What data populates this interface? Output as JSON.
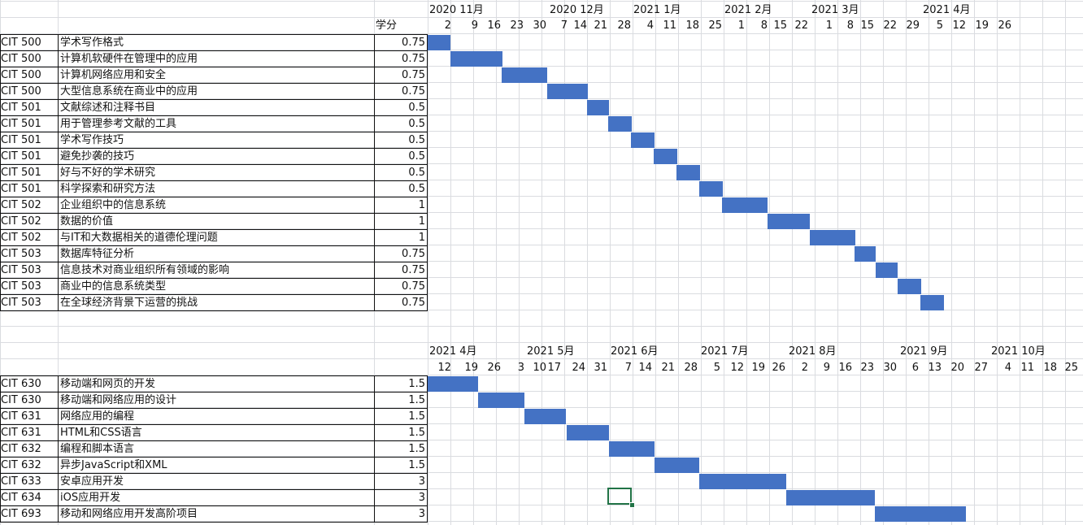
{
  "credit_header": "学分",
  "block1": {
    "months": [
      "2020 11月",
      "2020 12月",
      "2021 1月",
      "2021 2月",
      "2021 3月",
      "2021 4月"
    ],
    "days": [
      "2",
      "9",
      "16",
      "23",
      "30",
      "7",
      "14",
      "21",
      "28",
      "4",
      "11",
      "18",
      "25",
      "1",
      "8",
      "15",
      "22",
      "1",
      "8",
      "15",
      "22",
      "29",
      "5",
      "12",
      "19",
      "26"
    ],
    "courses": [
      {
        "code": "CIT 500",
        "title": "学术写作格式",
        "credits": "0.75"
      },
      {
        "code": "CIT 500",
        "title": "计算机软硬件在管理中的应用",
        "credits": "0.75"
      },
      {
        "code": "CIT 500",
        "title": "计算机网络应用和安全",
        "credits": "0.75"
      },
      {
        "code": "CIT 500",
        "title": "大型信息系统在商业中的应用",
        "credits": "0.75"
      },
      {
        "code": "CIT 501",
        "title": "文献综述和注释书目",
        "credits": "0.5"
      },
      {
        "code": "CIT 501",
        "title": "用于管理参考文献的工具",
        "credits": "0.5"
      },
      {
        "code": "CIT 501",
        "title": "学术写作技巧",
        "credits": "0.5"
      },
      {
        "code": "CIT 501",
        "title": "避免抄袭的技巧",
        "credits": "0.5"
      },
      {
        "code": "CIT 501",
        "title": "好与不好的学术研究",
        "credits": "0.5"
      },
      {
        "code": "CIT 501",
        "title": "科学探索和研究方法",
        "credits": "0.5"
      },
      {
        "code": "CIT 502",
        "title": "企业组织中的信息系统",
        "credits": "1"
      },
      {
        "code": "CIT 502",
        "title": "数据的价值",
        "credits": "1"
      },
      {
        "code": "CIT 502",
        "title": "与IT和大数据相关的道德伦理问题",
        "credits": "1"
      },
      {
        "code": "CIT 503",
        "title": "数据库特征分析",
        "credits": "0.75"
      },
      {
        "code": "CIT 503",
        "title": "信息技术对商业组织所有领域的影响",
        "credits": "0.75"
      },
      {
        "code": "CIT 503",
        "title": "商业中的信息系统类型",
        "credits": "0.75"
      },
      {
        "code": "CIT 503",
        "title": "在全球经济背景下运营的挑战",
        "credits": "0.75"
      }
    ]
  },
  "block2": {
    "months": [
      "2021 4月",
      "2021 5月",
      "2021 6月",
      "2021 7月",
      "2021 8月",
      "2021 9月",
      "2021 10月"
    ],
    "days": [
      "12",
      "19",
      "26",
      "3",
      "10",
      "17",
      "24",
      "31",
      "7",
      "14",
      "21",
      "28",
      "5",
      "12",
      "19",
      "26",
      "2",
      "9",
      "16",
      "23",
      "30",
      "6",
      "13",
      "20",
      "27",
      "4",
      "11",
      "18",
      "25"
    ],
    "courses": [
      {
        "code": "CIT 630",
        "title": "移动端和网页的开发",
        "credits": "1.5"
      },
      {
        "code": "CIT 630",
        "title": "移动端和网络应用的设计",
        "credits": "1.5"
      },
      {
        "code": "CIT 631",
        "title": "网络应用的编程",
        "credits": "1.5"
      },
      {
        "code": "CIT 631",
        "title": "HTML和CSS语言",
        "credits": "1.5"
      },
      {
        "code": "CIT 632",
        "title": "编程和脚本语言",
        "credits": "1.5"
      },
      {
        "code": "CIT 632",
        "title": "异步JavaScript和XML",
        "credits": "1.5"
      },
      {
        "code": "CIT 633",
        "title": "安卓应用开发",
        "credits": "3"
      },
      {
        "code": "CIT 634",
        "title": "iOS应用开发",
        "credits": "3"
      },
      {
        "code": "CIT 693",
        "title": "移动和网络应用开发高阶项目",
        "credits": "3"
      }
    ]
  },
  "colors": {
    "bar": "#4472c4",
    "grid": "#dadce0",
    "selection": "#217346"
  }
}
